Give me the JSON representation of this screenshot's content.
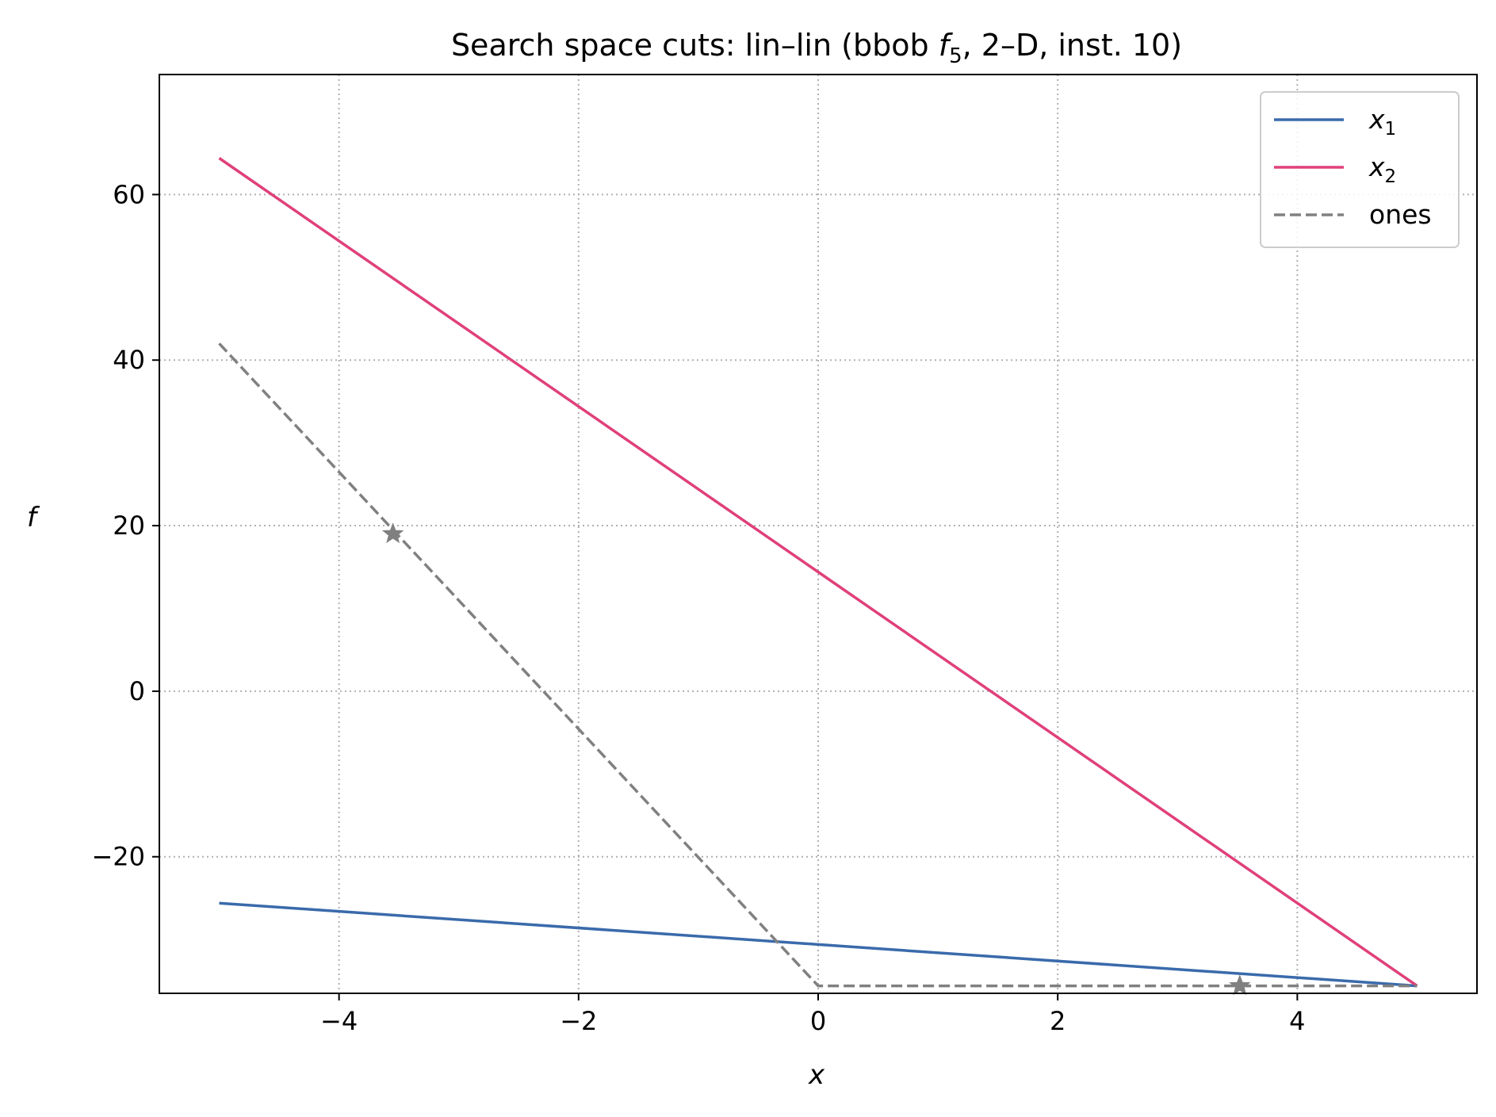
{
  "chart_data": {
    "type": "line",
    "title": {
      "prefix": "Search space cuts: lin–lin (bbob ",
      "italic": "f",
      "subscript": "5",
      "suffix": ", 2–D, inst. 10)"
    },
    "xlabel": "x",
    "ylabel": "f",
    "xlim": [
      -5.5,
      5.5
    ],
    "ylim": [
      -36.5,
      74.5
    ],
    "xticks": [
      -4,
      -2,
      0,
      2,
      4
    ],
    "xtick_labels": [
      "−4",
      "−2",
      "0",
      "2",
      "4"
    ],
    "yticks": [
      -20,
      0,
      20,
      40,
      60
    ],
    "ytick_labels": [
      "−20",
      "0",
      "20",
      "40",
      "60"
    ],
    "grid": true,
    "grid_style": "dotted",
    "legend_position": "upper-right",
    "series": [
      {
        "name": "x",
        "name_sub": "1",
        "color": "#3a6aab",
        "style": "solid",
        "x": [
          -5,
          0,
          5
        ],
        "y": [
          -25.6,
          -30.6,
          -35.6
        ]
      },
      {
        "name": "x",
        "name_sub": "2",
        "color": "#e0407a",
        "style": "solid",
        "x": [
          -5,
          0,
          5
        ],
        "y": [
          64.4,
          14.4,
          -35.6
        ]
      },
      {
        "name": "ones",
        "name_sub": "",
        "color": "#808080",
        "style": "dashed",
        "x": [
          -5,
          0,
          5
        ],
        "y": [
          42.0,
          -35.6,
          -35.6
        ]
      }
    ],
    "markers": [
      {
        "x": -3.55,
        "y": 19.0,
        "symbol": "star",
        "color": "#808080"
      },
      {
        "x": 3.52,
        "y": -35.6,
        "symbol": "star",
        "color": "#808080"
      }
    ]
  }
}
